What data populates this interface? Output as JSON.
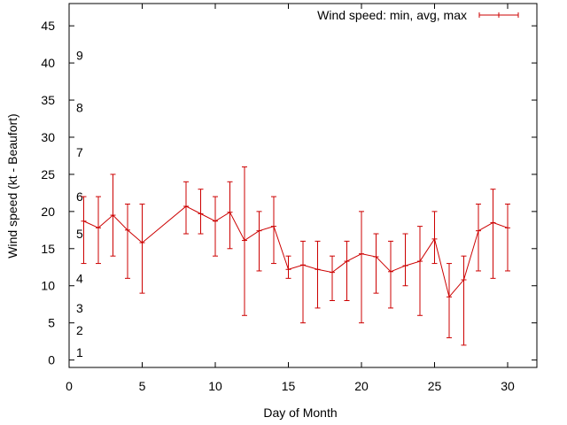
{
  "chart_data": {
    "type": "line",
    "title": "",
    "xlabel": "Day of Month",
    "ylabel": "Wind speed (kt - Beaufort)",
    "xlim": [
      0,
      32
    ],
    "ylim": [
      -1,
      48
    ],
    "x_ticks": [
      0,
      5,
      10,
      15,
      20,
      25,
      30
    ],
    "y_ticks": [
      0,
      5,
      10,
      15,
      20,
      25,
      30,
      35,
      40,
      45
    ],
    "grid": false,
    "legend_position": "top-right",
    "beaufort_labels": [
      {
        "label": "1",
        "y": 1
      },
      {
        "label": "2",
        "y": 4
      },
      {
        "label": "3",
        "y": 7
      },
      {
        "label": "4",
        "y": 11
      },
      {
        "label": "5",
        "y": 17
      },
      {
        "label": "6",
        "y": 22
      },
      {
        "label": "7",
        "y": 28
      },
      {
        "label": "8",
        "y": 34
      },
      {
        "label": "9",
        "y": 41
      }
    ],
    "series": [
      {
        "name": "Wind speed: min, avg, max",
        "color": "#cc0000",
        "points": [
          {
            "x": 1,
            "min": 13,
            "avg": 18.7,
            "max": 22
          },
          {
            "x": 2,
            "min": 13,
            "avg": 17.8,
            "max": 22
          },
          {
            "x": 3,
            "min": 14,
            "avg": 19.5,
            "max": 25
          },
          {
            "x": 4,
            "min": 11,
            "avg": 17.5,
            "max": 21
          },
          {
            "x": 5,
            "min": 9,
            "avg": 15.8,
            "max": 21
          },
          {
            "x": 8,
            "min": 17,
            "avg": 20.7,
            "max": 24
          },
          {
            "x": 9,
            "min": 17,
            "avg": 19.7,
            "max": 23
          },
          {
            "x": 10,
            "min": 14,
            "avg": 18.7,
            "max": 22
          },
          {
            "x": 11,
            "min": 15,
            "avg": 19.9,
            "max": 24
          },
          {
            "x": 12,
            "min": 6,
            "avg": 16.1,
            "max": 26
          },
          {
            "x": 13,
            "min": 12,
            "avg": 17.4,
            "max": 20
          },
          {
            "x": 14,
            "min": 13,
            "avg": 18,
            "max": 22
          },
          {
            "x": 15,
            "min": 11,
            "avg": 12.2,
            "max": 14
          },
          {
            "x": 16,
            "min": 5,
            "avg": 12.8,
            "max": 16
          },
          {
            "x": 17,
            "min": 7,
            "avg": 12.2,
            "max": 16
          },
          {
            "x": 18,
            "min": 8,
            "avg": 11.8,
            "max": 14
          },
          {
            "x": 19,
            "min": 8,
            "avg": 13.3,
            "max": 16
          },
          {
            "x": 20,
            "min": 5,
            "avg": 14.3,
            "max": 20
          },
          {
            "x": 21,
            "min": 9,
            "avg": 13.9,
            "max": 17
          },
          {
            "x": 22,
            "min": 7,
            "avg": 11.9,
            "max": 16
          },
          {
            "x": 23,
            "min": 10,
            "avg": 12.7,
            "max": 17
          },
          {
            "x": 24,
            "min": 6,
            "avg": 13.3,
            "max": 18
          },
          {
            "x": 25,
            "min": 13,
            "avg": 16.3,
            "max": 20
          },
          {
            "x": 26,
            "min": 3,
            "avg": 8.5,
            "max": 13
          },
          {
            "x": 27,
            "min": 2,
            "avg": 10.8,
            "max": 14
          },
          {
            "x": 28,
            "min": 12,
            "avg": 17.4,
            "max": 21
          },
          {
            "x": 29,
            "min": 11,
            "avg": 18.5,
            "max": 23
          },
          {
            "x": 30,
            "min": 12,
            "avg": 17.8,
            "max": 21
          }
        ]
      }
    ]
  }
}
